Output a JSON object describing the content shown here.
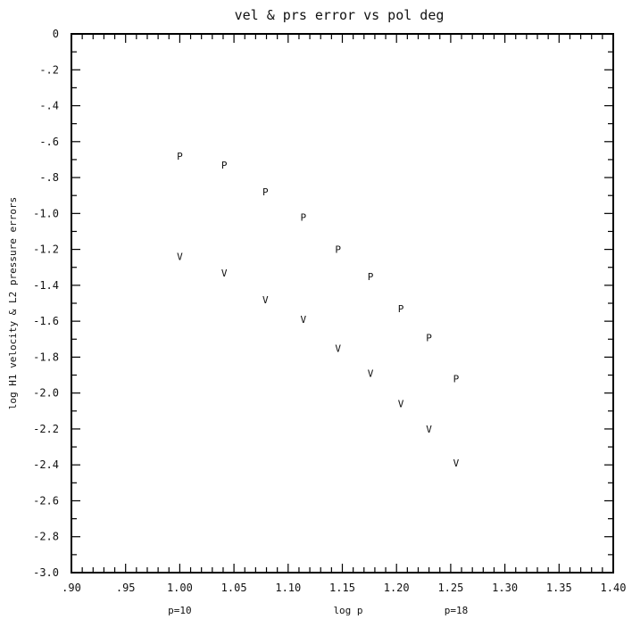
{
  "chart_data": {
    "type": "scatter",
    "title": "vel & prs error vs pol deg",
    "xlabel": "log p",
    "ylabel": "log H1 velocity & L2 pressure errors",
    "xlim": [
      0.9,
      1.4
    ],
    "ylim": [
      -3.0,
      0.0
    ],
    "x_ticks": [
      ".90",
      ".95",
      "1.00",
      "1.05",
      "1.10",
      "1.15",
      "1.20",
      "1.25",
      "1.30",
      "1.35",
      "1.40"
    ],
    "y_ticks": [
      "0",
      "-.2",
      "-.4",
      "-.6",
      "-.8",
      "-1.0",
      "-1.2",
      "-1.4",
      "-1.6",
      "-1.8",
      "-2.0",
      "-2.2",
      "-2.4",
      "-2.6",
      "-2.8",
      "-3.0"
    ],
    "x_minor_step": 0.01,
    "y_minor_step": 0.1,
    "annotations": [
      "p=10",
      "p=18"
    ],
    "annotation_x": [
      1.0,
      1.255
    ],
    "grid": false,
    "series": [
      {
        "marker": "P",
        "x": [
          1.0,
          1.041,
          1.079,
          1.114,
          1.146,
          1.176,
          1.204,
          1.23,
          1.255
        ],
        "y": [
          -0.68,
          -0.73,
          -0.88,
          -1.02,
          -1.2,
          -1.35,
          -1.53,
          -1.69,
          -1.92
        ]
      },
      {
        "marker": "V",
        "x": [
          1.0,
          1.041,
          1.079,
          1.114,
          1.146,
          1.176,
          1.204,
          1.23,
          1.255
        ],
        "y": [
          -1.24,
          -1.33,
          -1.48,
          -1.59,
          -1.75,
          -1.89,
          -2.06,
          -2.2,
          -2.39
        ]
      }
    ]
  }
}
